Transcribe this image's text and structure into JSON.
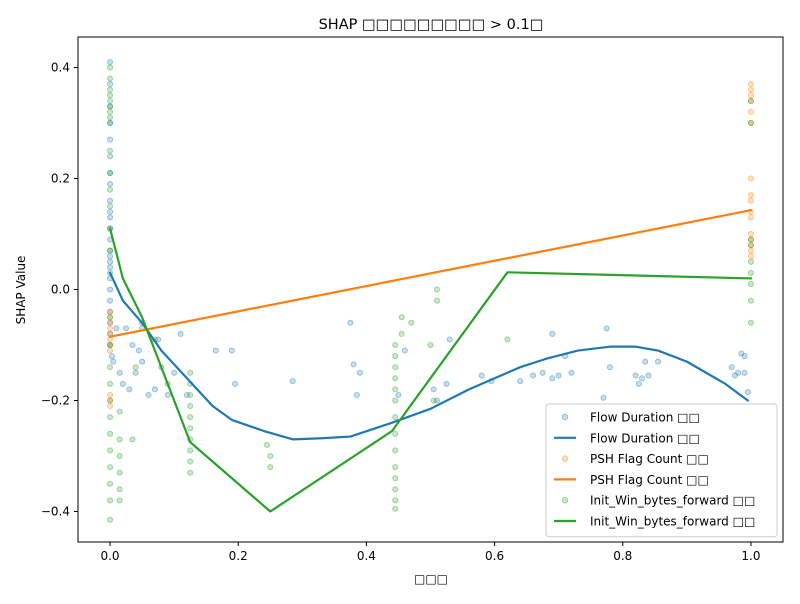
{
  "chart_data": {
    "type": "scatter",
    "title": "SHAP □□□□□□□□□ > 0.1□",
    "xlabel": "□□□",
    "ylabel": "SHAP Value",
    "xlim": [
      -0.05,
      1.05
    ],
    "ylim": [
      -0.455,
      0.455
    ],
    "xticks": [
      0.0,
      0.2,
      0.4,
      0.6,
      0.8,
      1.0
    ],
    "xtick_labels": [
      "0.0",
      "0.2",
      "0.4",
      "0.6",
      "0.8",
      "1.0"
    ],
    "yticks": [
      -0.4,
      -0.2,
      0.0,
      0.2,
      0.4
    ],
    "ytick_labels": [
      "−0.4",
      "−0.2",
      "0.0",
      "0.2",
      "0.4"
    ],
    "grid": false,
    "legend_position": "lower-right",
    "series": [
      {
        "name": "Flow Duration □□",
        "kind": "scatter",
        "color": "#1f77b4",
        "points": [
          [
            0.0,
            0.41
          ],
          [
            0.0,
            0.37
          ],
          [
            0.0,
            0.33
          ],
          [
            0.0,
            0.3
          ],
          [
            0.0,
            0.27
          ],
          [
            0.0,
            0.24
          ],
          [
            0.0,
            0.21
          ],
          [
            0.0,
            0.19
          ],
          [
            0.0,
            0.16
          ],
          [
            0.0,
            0.14
          ],
          [
            0.0,
            0.13
          ],
          [
            0.0,
            0.11
          ],
          [
            0.0,
            0.09
          ],
          [
            0.0,
            0.07
          ],
          [
            0.0,
            0.06
          ],
          [
            0.0,
            0.05
          ],
          [
            0.0,
            0.04
          ],
          [
            0.0,
            0.02
          ],
          [
            0.0,
            0.0
          ],
          [
            0.0,
            -0.02
          ],
          [
            0.0,
            -0.04
          ],
          [
            0.0,
            -0.06
          ],
          [
            0.0,
            -0.08
          ],
          [
            0.0,
            -0.1
          ],
          [
            0.003,
            -0.12
          ],
          [
            0.005,
            -0.13
          ],
          [
            0.01,
            -0.07
          ],
          [
            0.015,
            -0.15
          ],
          [
            0.02,
            -0.17
          ],
          [
            0.025,
            -0.07
          ],
          [
            0.03,
            -0.18
          ],
          [
            0.035,
            -0.1
          ],
          [
            0.04,
            -0.15
          ],
          [
            0.045,
            -0.11
          ],
          [
            0.05,
            -0.06
          ],
          [
            0.05,
            -0.13
          ],
          [
            0.06,
            -0.19
          ],
          [
            0.07,
            -0.18
          ],
          [
            0.075,
            -0.09
          ],
          [
            0.08,
            -0.14
          ],
          [
            0.09,
            -0.19
          ],
          [
            0.1,
            -0.15
          ],
          [
            0.11,
            -0.08
          ],
          [
            0.12,
            -0.19
          ],
          [
            0.165,
            -0.11
          ],
          [
            0.19,
            -0.11
          ],
          [
            0.195,
            -0.17
          ],
          [
            0.285,
            -0.165
          ],
          [
            0.375,
            -0.06
          ],
          [
            0.38,
            -0.135
          ],
          [
            0.385,
            -0.19
          ],
          [
            0.39,
            -0.15
          ],
          [
            0.45,
            -0.19
          ],
          [
            0.46,
            -0.11
          ],
          [
            0.505,
            -0.18
          ],
          [
            0.51,
            -0.2
          ],
          [
            0.525,
            -0.17
          ],
          [
            0.53,
            -0.09
          ],
          [
            0.58,
            -0.155
          ],
          [
            0.595,
            -0.165
          ],
          [
            0.64,
            -0.165
          ],
          [
            0.66,
            -0.155
          ],
          [
            0.675,
            -0.15
          ],
          [
            0.69,
            -0.08
          ],
          [
            0.69,
            -0.16
          ],
          [
            0.7,
            -0.155
          ],
          [
            0.71,
            -0.12
          ],
          [
            0.72,
            -0.15
          ],
          [
            0.77,
            -0.195
          ],
          [
            0.775,
            -0.07
          ],
          [
            0.78,
            -0.14
          ],
          [
            0.82,
            -0.155
          ],
          [
            0.825,
            -0.17
          ],
          [
            0.83,
            -0.16
          ],
          [
            0.835,
            -0.13
          ],
          [
            0.84,
            -0.155
          ],
          [
            0.855,
            -0.13
          ],
          [
            0.97,
            -0.14
          ],
          [
            0.975,
            -0.155
          ],
          [
            0.98,
            -0.15
          ],
          [
            0.985,
            -0.115
          ],
          [
            0.99,
            -0.12
          ],
          [
            0.99,
            -0.15
          ],
          [
            0.995,
            -0.185
          ]
        ]
      },
      {
        "name": "Flow Duration □□",
        "kind": "line",
        "color": "#1f77b4",
        "points": [
          [
            0.0,
            0.03
          ],
          [
            0.02,
            -0.02
          ],
          [
            0.05,
            -0.06
          ],
          [
            0.08,
            -0.11
          ],
          [
            0.12,
            -0.16
          ],
          [
            0.16,
            -0.21
          ],
          [
            0.19,
            -0.235
          ],
          [
            0.24,
            -0.255
          ],
          [
            0.285,
            -0.27
          ],
          [
            0.33,
            -0.268
          ],
          [
            0.375,
            -0.265
          ],
          [
            0.44,
            -0.24
          ],
          [
            0.5,
            -0.215
          ],
          [
            0.56,
            -0.18
          ],
          [
            0.6,
            -0.16
          ],
          [
            0.64,
            -0.14
          ],
          [
            0.68,
            -0.125
          ],
          [
            0.73,
            -0.11
          ],
          [
            0.78,
            -0.103
          ],
          [
            0.82,
            -0.103
          ],
          [
            0.855,
            -0.11
          ],
          [
            0.9,
            -0.13
          ],
          [
            0.96,
            -0.17
          ],
          [
            0.995,
            -0.2
          ]
        ]
      },
      {
        "name": "PSH Flag Count □□",
        "kind": "scatter",
        "color": "#ff7f0e",
        "points": [
          [
            0.0,
            -0.04
          ],
          [
            0.0,
            -0.05
          ],
          [
            0.0,
            -0.06
          ],
          [
            0.0,
            -0.07
          ],
          [
            0.0,
            -0.08
          ],
          [
            0.0,
            -0.09
          ],
          [
            0.0,
            -0.1
          ],
          [
            0.0,
            -0.11
          ],
          [
            0.0,
            -0.19
          ],
          [
            0.0,
            -0.2
          ],
          [
            0.0,
            -0.21
          ],
          [
            1.0,
            0.37
          ],
          [
            1.0,
            0.36
          ],
          [
            1.0,
            0.35
          ],
          [
            1.0,
            0.34
          ],
          [
            1.0,
            0.32
          ],
          [
            1.0,
            0.3
          ],
          [
            1.0,
            0.2
          ],
          [
            1.0,
            0.17
          ],
          [
            1.0,
            0.16
          ],
          [
            1.0,
            0.14
          ],
          [
            1.0,
            0.13
          ],
          [
            1.0,
            0.1
          ],
          [
            1.0,
            0.09
          ],
          [
            1.0,
            0.08
          ],
          [
            1.0,
            0.07
          ],
          [
            1.0,
            0.06
          ]
        ]
      },
      {
        "name": "PSH Flag Count □□",
        "kind": "line",
        "color": "#ff7f0e",
        "points": [
          [
            0.0,
            -0.085
          ],
          [
            1.0,
            0.143
          ]
        ]
      },
      {
        "name": "Init_Win_bytes_forward □□",
        "kind": "scatter",
        "color": "#2ca02c",
        "points": [
          [
            0.0,
            0.4
          ],
          [
            0.0,
            0.38
          ],
          [
            0.0,
            0.36
          ],
          [
            0.0,
            0.35
          ],
          [
            0.0,
            0.34
          ],
          [
            0.0,
            0.33
          ],
          [
            0.0,
            0.32
          ],
          [
            0.0,
            0.31
          ],
          [
            0.0,
            0.3
          ],
          [
            0.0,
            0.25
          ],
          [
            0.0,
            0.21
          ],
          [
            0.0,
            0.18
          ],
          [
            0.0,
            0.15
          ],
          [
            0.0,
            0.11
          ],
          [
            0.0,
            0.07
          ],
          [
            0.0,
            0.03
          ],
          [
            0.0,
            -0.05
          ],
          [
            0.0,
            -0.1
          ],
          [
            0.0,
            -0.14
          ],
          [
            0.0,
            -0.17
          ],
          [
            0.0,
            -0.2
          ],
          [
            0.0,
            -0.23
          ],
          [
            0.0,
            -0.26
          ],
          [
            0.0,
            -0.29
          ],
          [
            0.0,
            -0.32
          ],
          [
            0.0,
            -0.35
          ],
          [
            0.0,
            -0.38
          ],
          [
            0.0,
            -0.415
          ],
          [
            0.015,
            -0.22
          ],
          [
            0.015,
            -0.27
          ],
          [
            0.015,
            -0.3
          ],
          [
            0.015,
            -0.33
          ],
          [
            0.015,
            -0.36
          ],
          [
            0.015,
            -0.38
          ],
          [
            0.035,
            -0.27
          ],
          [
            0.04,
            -0.14
          ],
          [
            0.05,
            -0.07
          ],
          [
            0.07,
            -0.09
          ],
          [
            0.09,
            -0.17
          ],
          [
            0.125,
            -0.15
          ],
          [
            0.125,
            -0.17
          ],
          [
            0.125,
            -0.19
          ],
          [
            0.125,
            -0.21
          ],
          [
            0.125,
            -0.23
          ],
          [
            0.125,
            -0.25
          ],
          [
            0.125,
            -0.27
          ],
          [
            0.125,
            -0.29
          ],
          [
            0.125,
            -0.31
          ],
          [
            0.125,
            -0.33
          ],
          [
            0.245,
            -0.28
          ],
          [
            0.25,
            -0.3
          ],
          [
            0.25,
            -0.32
          ],
          [
            0.445,
            -0.1
          ],
          [
            0.445,
            -0.12
          ],
          [
            0.445,
            -0.14
          ],
          [
            0.445,
            -0.16
          ],
          [
            0.445,
            -0.18
          ],
          [
            0.445,
            -0.2
          ],
          [
            0.445,
            -0.23
          ],
          [
            0.445,
            -0.26
          ],
          [
            0.445,
            -0.29
          ],
          [
            0.445,
            -0.32
          ],
          [
            0.445,
            -0.34
          ],
          [
            0.445,
            -0.36
          ],
          [
            0.445,
            -0.38
          ],
          [
            0.445,
            -0.395
          ],
          [
            0.455,
            -0.05
          ],
          [
            0.455,
            -0.08
          ],
          [
            0.47,
            -0.06
          ],
          [
            0.5,
            -0.1
          ],
          [
            0.505,
            -0.2
          ],
          [
            0.51,
            0.0
          ],
          [
            0.51,
            -0.02
          ],
          [
            0.62,
            -0.09
          ],
          [
            1.0,
            0.34
          ],
          [
            1.0,
            0.3
          ],
          [
            1.0,
            0.09
          ],
          [
            1.0,
            0.08
          ],
          [
            1.0,
            0.05
          ],
          [
            1.0,
            0.03
          ],
          [
            1.0,
            0.01
          ],
          [
            1.0,
            -0.02
          ],
          [
            1.0,
            -0.06
          ]
        ]
      },
      {
        "name": "Init_Win_bytes_forward □□",
        "kind": "line",
        "color": "#2ca02c",
        "points": [
          [
            0.0,
            0.11
          ],
          [
            0.02,
            0.02
          ],
          [
            0.05,
            -0.05
          ],
          [
            0.125,
            -0.275
          ],
          [
            0.25,
            -0.4
          ],
          [
            0.44,
            -0.255
          ],
          [
            0.62,
            0.031
          ],
          [
            1.0,
            0.02
          ]
        ]
      }
    ]
  }
}
